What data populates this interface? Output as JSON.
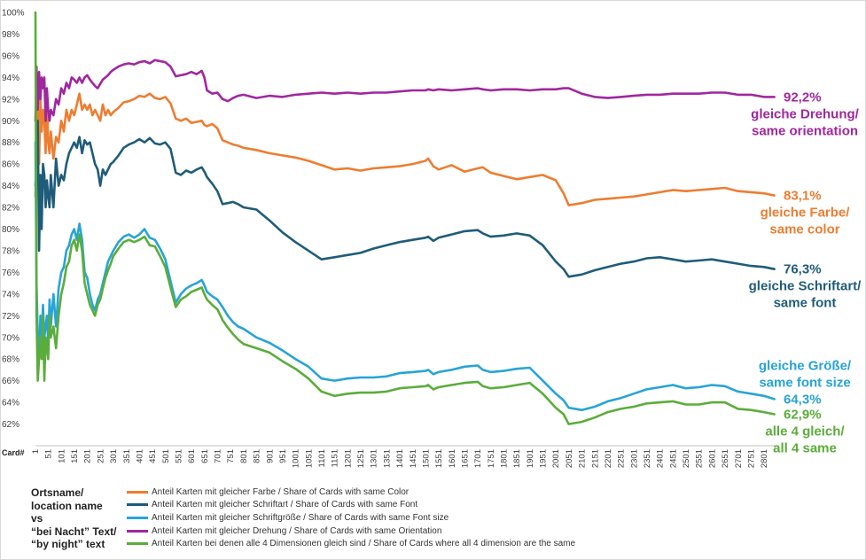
{
  "chart_data": {
    "type": "line",
    "x_axis_title": "Card#",
    "x_ticks": [
      "1",
      "51",
      "101",
      "151",
      "201",
      "251",
      "301",
      "351",
      "401",
      "451",
      "501",
      "551",
      "601",
      "651",
      "701",
      "751",
      "801",
      "851",
      "901",
      "951",
      "1001",
      "1051",
      "1101",
      "1151",
      "1201",
      "1251",
      "1301",
      "1351",
      "1401",
      "1451",
      "1501",
      "1551",
      "1601",
      "1651",
      "1701",
      "1751",
      "1801",
      "1851",
      "1901",
      "1951",
      "2001",
      "2051",
      "2101",
      "2151",
      "2201",
      "2251",
      "2301",
      "2351",
      "2401",
      "2451",
      "2501",
      "2551",
      "2601",
      "2651",
      "2701",
      "2751",
      "2801"
    ],
    "xlim": [
      1,
      2855
    ],
    "ylim": [
      60,
      100
    ],
    "y_ticks": [
      "100%",
      "98%",
      "96%",
      "94%",
      "92%",
      "90%",
      "88%",
      "86%",
      "84%",
      "82%",
      "80%",
      "78%",
      "76%",
      "74%",
      "72%",
      "70%",
      "68%",
      "66%",
      "64%",
      "62%"
    ],
    "legend_title": [
      "Ortsname/",
      "location name",
      "vs",
      "“bei Nacht” Text/",
      "“by night” text"
    ],
    "series": [
      {
        "name": "Anteil Karten mit gleicher Farbe / Share of Cards with same Color",
        "color": "#ed7d31",
        "end_label": [
          "83,1%",
          "gleiche Farbe/",
          "same color"
        ],
        "x": [
          1,
          5,
          10,
          15,
          20,
          25,
          30,
          35,
          40,
          45,
          50,
          55,
          60,
          70,
          80,
          90,
          100,
          110,
          120,
          130,
          140,
          150,
          160,
          170,
          180,
          190,
          200,
          210,
          220,
          230,
          240,
          250,
          260,
          270,
          280,
          290,
          300,
          320,
          340,
          360,
          380,
          400,
          420,
          440,
          460,
          480,
          500,
          520,
          540,
          560,
          580,
          600,
          620,
          640,
          650,
          660,
          680,
          700,
          720,
          740,
          760,
          780,
          800,
          850,
          900,
          950,
          1000,
          1050,
          1100,
          1150,
          1200,
          1250,
          1300,
          1350,
          1400,
          1450,
          1500,
          1510,
          1530,
          1550,
          1600,
          1650,
          1700,
          1720,
          1750,
          1800,
          1850,
          1900,
          1950,
          2000,
          2030,
          2050,
          2100,
          2150,
          2200,
          2250,
          2300,
          2350,
          2400,
          2450,
          2500,
          2550,
          2600,
          2650,
          2700,
          2750,
          2800,
          2840
        ],
        "y": [
          83.0,
          88.0,
          91.0,
          86.0,
          92.0,
          89.0,
          91.0,
          90.0,
          87.0,
          92.0,
          88.0,
          87.0,
          89.0,
          86.5,
          88.5,
          88.0,
          90.0,
          89.0,
          91.0,
          90.0,
          91.0,
          90.5,
          91.5,
          92.5,
          91.0,
          91.5,
          91.0,
          91.5,
          90.5,
          91.0,
          90.5,
          90.0,
          91.5,
          90.5,
          91.0,
          90.5,
          90.8,
          91.2,
          91.7,
          91.8,
          92.0,
          92.3,
          92.2,
          92.5,
          92.1,
          92.0,
          92.2,
          91.6,
          90.2,
          90.0,
          90.2,
          89.8,
          89.9,
          90.0,
          89.6,
          89.5,
          89.7,
          89.3,
          88.2,
          88.0,
          87.8,
          87.7,
          87.5,
          87.3,
          87.0,
          86.8,
          86.6,
          86.3,
          85.9,
          85.5,
          85.6,
          85.4,
          85.6,
          85.7,
          85.8,
          86.0,
          86.3,
          86.5,
          85.8,
          85.5,
          85.9,
          85.3,
          85.6,
          85.7,
          85.2,
          84.9,
          84.6,
          84.8,
          85.0,
          84.5,
          83.3,
          82.2,
          82.4,
          82.7,
          82.8,
          82.9,
          83.0,
          83.2,
          83.4,
          83.6,
          83.5,
          83.6,
          83.7,
          83.8,
          83.5,
          83.4,
          83.3,
          83.1
        ]
      },
      {
        "name": "Anteil Karten mit gleicher Schriftart / Share of Cards with same Font",
        "color": "#1f5c7a",
        "end_label": [
          "76,3%",
          "gleiche Schriftart/",
          "same font"
        ],
        "x": [
          1,
          5,
          10,
          15,
          20,
          25,
          30,
          35,
          40,
          45,
          50,
          55,
          60,
          70,
          80,
          90,
          100,
          110,
          120,
          130,
          140,
          150,
          160,
          170,
          180,
          190,
          200,
          210,
          220,
          230,
          240,
          250,
          260,
          270,
          280,
          290,
          300,
          320,
          340,
          360,
          380,
          400,
          420,
          440,
          460,
          480,
          500,
          520,
          540,
          560,
          580,
          600,
          620,
          640,
          650,
          660,
          680,
          700,
          720,
          740,
          760,
          780,
          800,
          850,
          900,
          950,
          1000,
          1050,
          1100,
          1150,
          1200,
          1250,
          1300,
          1350,
          1400,
          1450,
          1500,
          1510,
          1530,
          1550,
          1600,
          1650,
          1700,
          1720,
          1750,
          1800,
          1850,
          1900,
          1950,
          2000,
          2030,
          2050,
          2100,
          2150,
          2200,
          2250,
          2300,
          2350,
          2400,
          2450,
          2500,
          2550,
          2600,
          2650,
          2700,
          2750,
          2800,
          2840
        ],
        "y": [
          84.0,
          86.0,
          90.0,
          78.0,
          85.0,
          80.0,
          86.0,
          85.0,
          82.0,
          84.5,
          83.0,
          82.0,
          85.0,
          82.0,
          86.5,
          84.0,
          85.0,
          84.5,
          86.0,
          87.0,
          87.5,
          88.0,
          87.5,
          88.5,
          87.0,
          88.2,
          87.8,
          88.0,
          87.0,
          86.0,
          85.5,
          84.0,
          85.5,
          85.0,
          85.5,
          86.0,
          86.2,
          86.8,
          87.5,
          87.8,
          88.0,
          88.3,
          88.0,
          88.4,
          87.9,
          87.8,
          88.0,
          87.4,
          85.2,
          85.0,
          85.4,
          85.2,
          85.5,
          85.7,
          85.3,
          84.8,
          84.2,
          83.5,
          82.3,
          82.4,
          82.5,
          82.3,
          82.0,
          81.8,
          80.8,
          79.7,
          78.8,
          78.0,
          77.2,
          77.4,
          77.6,
          77.8,
          78.2,
          78.5,
          78.8,
          79.0,
          79.2,
          79.3,
          78.9,
          79.2,
          79.5,
          79.8,
          79.9,
          79.6,
          79.3,
          79.4,
          79.6,
          79.4,
          78.5,
          77.0,
          76.3,
          75.6,
          75.8,
          76.2,
          76.5,
          76.8,
          77.0,
          77.3,
          77.4,
          77.2,
          77.0,
          77.1,
          77.2,
          77.0,
          76.8,
          76.6,
          76.5,
          76.3
        ]
      },
      {
        "name": "Anteil Karten mit gleicher Schriftgröße / Share of Cards with same Font size",
        "color": "#27a4d7",
        "end_label": [
          "gleiche Größe/",
          "same font size",
          "64,3%"
        ],
        "x": [
          1,
          5,
          10,
          15,
          20,
          25,
          30,
          35,
          40,
          45,
          50,
          55,
          60,
          70,
          80,
          90,
          100,
          110,
          120,
          130,
          140,
          150,
          160,
          170,
          180,
          190,
          200,
          210,
          220,
          230,
          240,
          250,
          260,
          270,
          280,
          290,
          300,
          320,
          340,
          360,
          380,
          400,
          420,
          440,
          460,
          480,
          500,
          520,
          540,
          560,
          580,
          600,
          620,
          640,
          650,
          660,
          680,
          700,
          720,
          740,
          760,
          780,
          800,
          850,
          900,
          950,
          1000,
          1050,
          1100,
          1150,
          1200,
          1250,
          1300,
          1350,
          1400,
          1450,
          1500,
          1510,
          1530,
          1550,
          1600,
          1650,
          1700,
          1720,
          1750,
          1800,
          1850,
          1900,
          1950,
          2000,
          2030,
          2050,
          2100,
          2150,
          2200,
          2250,
          2300,
          2350,
          2400,
          2450,
          2500,
          2550,
          2600,
          2650,
          2700,
          2750,
          2800,
          2840
        ],
        "y": [
          88.0,
          75.0,
          70.0,
          68.0,
          72.0,
          70.0,
          73.0,
          70.0,
          71.0,
          72.0,
          69.5,
          73.5,
          71.0,
          74.0,
          71.0,
          74.5,
          76.0,
          76.5,
          78.0,
          78.5,
          79.5,
          80.0,
          79.0,
          80.5,
          79.0,
          76.0,
          75.5,
          74.0,
          73.0,
          72.5,
          73.5,
          74.0,
          75.0,
          76.0,
          77.0,
          77.5,
          78.0,
          78.8,
          79.3,
          79.5,
          79.2,
          79.5,
          80.0,
          79.2,
          79.0,
          78.2,
          77.2,
          75.2,
          73.2,
          74.0,
          74.5,
          74.8,
          75.0,
          75.3,
          74.8,
          74.2,
          73.8,
          73.5,
          72.8,
          72.0,
          71.4,
          71.0,
          70.8,
          70.0,
          69.5,
          68.8,
          68.0,
          67.3,
          66.2,
          66.0,
          66.2,
          66.3,
          66.3,
          66.4,
          66.7,
          66.8,
          66.9,
          67.0,
          66.6,
          66.8,
          67.0,
          67.3,
          67.4,
          67.0,
          66.8,
          66.9,
          67.1,
          67.2,
          66.0,
          64.8,
          64.2,
          63.5,
          63.3,
          63.6,
          64.1,
          64.4,
          64.8,
          65.2,
          65.4,
          65.6,
          65.3,
          65.4,
          65.6,
          65.5,
          65.0,
          64.8,
          64.6,
          64.3
        ]
      },
      {
        "name": "Anteil Karten mit gleicher Drehung / Share of Cards with same Orientation",
        "color": "#a0279f",
        "end_label": [
          "92,2%",
          "gleiche Drehung/",
          "same orientation"
        ],
        "x": [
          1,
          5,
          10,
          15,
          20,
          25,
          30,
          35,
          40,
          45,
          50,
          55,
          60,
          70,
          80,
          90,
          100,
          110,
          120,
          130,
          140,
          150,
          160,
          170,
          180,
          190,
          200,
          210,
          220,
          230,
          240,
          250,
          260,
          270,
          280,
          290,
          300,
          320,
          340,
          360,
          380,
          400,
          420,
          440,
          460,
          480,
          500,
          520,
          540,
          560,
          580,
          600,
          620,
          640,
          650,
          660,
          680,
          700,
          720,
          740,
          760,
          780,
          800,
          850,
          900,
          950,
          1000,
          1050,
          1100,
          1150,
          1200,
          1250,
          1300,
          1350,
          1400,
          1450,
          1500,
          1510,
          1530,
          1550,
          1600,
          1650,
          1700,
          1720,
          1750,
          1800,
          1850,
          1900,
          1950,
          2000,
          2030,
          2050,
          2100,
          2150,
          2200,
          2250,
          2300,
          2350,
          2400,
          2450,
          2500,
          2550,
          2600,
          2650,
          2700,
          2750,
          2800,
          2840
        ],
        "y": [
          90.0,
          95.0,
          91.0,
          94.5,
          92.0,
          94.0,
          93.0,
          94.0,
          90.0,
          93.0,
          91.0,
          90.0,
          91.0,
          90.5,
          92.0,
          91.5,
          93.0,
          92.5,
          93.5,
          93.0,
          94.0,
          93.8,
          93.5,
          94.0,
          93.5,
          94.0,
          94.2,
          93.8,
          93.5,
          93.2,
          93.0,
          93.4,
          93.8,
          94.0,
          94.2,
          94.5,
          94.7,
          95.0,
          95.2,
          95.3,
          95.2,
          95.4,
          95.5,
          95.3,
          95.6,
          95.5,
          95.4,
          95.0,
          94.1,
          94.2,
          94.3,
          94.5,
          94.3,
          94.6,
          94.0,
          92.8,
          92.5,
          92.6,
          92.0,
          91.8,
          92.1,
          92.3,
          92.4,
          92.1,
          92.3,
          92.2,
          92.4,
          92.5,
          92.6,
          92.5,
          92.6,
          92.5,
          92.6,
          92.6,
          92.7,
          92.8,
          92.8,
          92.9,
          92.8,
          92.9,
          92.8,
          92.9,
          93.0,
          92.9,
          92.8,
          92.9,
          92.9,
          92.8,
          92.9,
          92.9,
          93.0,
          93.0,
          92.5,
          92.2,
          92.1,
          92.2,
          92.3,
          92.4,
          92.4,
          92.5,
          92.5,
          92.5,
          92.6,
          92.6,
          92.4,
          92.4,
          92.2,
          92.2
        ]
      },
      {
        "name": "Anteil Karten bei denen alle 4 Dimensionen gleich sind / Share of Cards where all 4 dimension are the same",
        "color": "#5aad3a",
        "end_label": [
          "62,9%",
          "alle 4 gleich/",
          "all 4 same"
        ],
        "x": [
          1,
          5,
          10,
          15,
          20,
          25,
          30,
          35,
          40,
          45,
          50,
          55,
          60,
          70,
          80,
          90,
          100,
          110,
          120,
          130,
          140,
          150,
          160,
          170,
          180,
          190,
          200,
          210,
          220,
          230,
          240,
          250,
          260,
          270,
          280,
          290,
          300,
          320,
          340,
          360,
          380,
          400,
          420,
          440,
          460,
          480,
          500,
          520,
          540,
          560,
          580,
          600,
          620,
          640,
          650,
          660,
          680,
          700,
          720,
          740,
          760,
          780,
          800,
          850,
          900,
          950,
          1000,
          1050,
          1100,
          1150,
          1200,
          1250,
          1300,
          1350,
          1400,
          1450,
          1500,
          1510,
          1530,
          1550,
          1600,
          1650,
          1700,
          1720,
          1750,
          1800,
          1850,
          1900,
          1950,
          2000,
          2030,
          2050,
          2100,
          2150,
          2200,
          2250,
          2300,
          2350,
          2400,
          2450,
          2500,
          2550,
          2600,
          2650,
          2700,
          2750,
          2800,
          2840
        ],
        "y": [
          100.0,
          72.0,
          66.0,
          68.0,
          70.0,
          68.0,
          72.0,
          66.0,
          70.0,
          69.0,
          68.0,
          72.0,
          70.0,
          71.0,
          69.0,
          72.0,
          74.0,
          75.0,
          76.5,
          77.0,
          78.5,
          79.0,
          78.0,
          79.5,
          78.0,
          75.0,
          74.0,
          73.0,
          72.5,
          72.0,
          73.0,
          73.5,
          74.5,
          75.5,
          76.2,
          76.8,
          77.5,
          78.2,
          78.8,
          79.0,
          78.8,
          79.0,
          79.3,
          78.5,
          78.4,
          77.5,
          76.5,
          74.6,
          72.8,
          73.5,
          73.8,
          74.2,
          74.4,
          74.6,
          74.0,
          73.5,
          73.0,
          72.6,
          71.6,
          70.9,
          70.3,
          69.8,
          69.4,
          69.0,
          68.6,
          67.8,
          67.1,
          66.2,
          65.0,
          64.6,
          64.8,
          64.9,
          64.9,
          65.0,
          65.3,
          65.4,
          65.5,
          65.6,
          65.2,
          65.4,
          65.6,
          65.8,
          65.9,
          65.5,
          65.3,
          65.4,
          65.6,
          65.8,
          64.8,
          63.5,
          62.9,
          62.0,
          62.2,
          62.6,
          63.1,
          63.4,
          63.6,
          63.9,
          64.0,
          64.1,
          63.8,
          63.8,
          64.0,
          64.0,
          63.4,
          63.3,
          63.1,
          62.9
        ]
      }
    ]
  }
}
